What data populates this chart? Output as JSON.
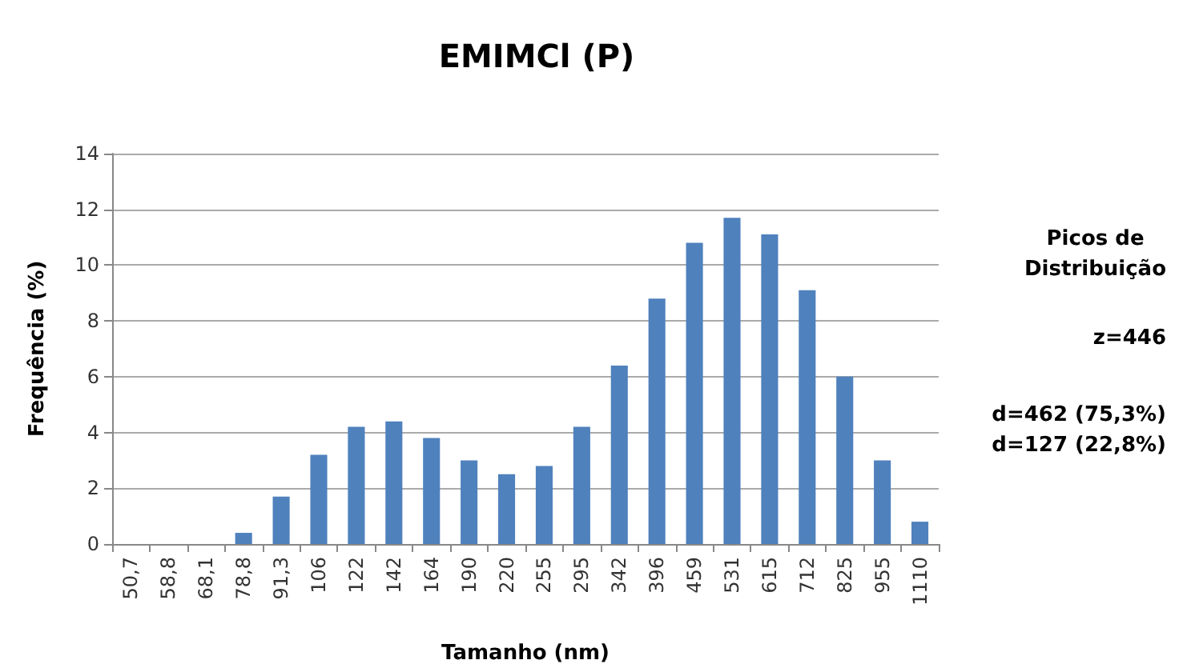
{
  "chart_data": {
    "type": "bar",
    "title": "EMIMCl (P)",
    "xlabel": "Tamanho (nm)",
    "ylabel": "Frequência (%)",
    "categories": [
      "50,7",
      "58,8",
      "68,1",
      "78,8",
      "91,3",
      "106",
      "122",
      "142",
      "164",
      "190",
      "220",
      "255",
      "295",
      "342",
      "396",
      "459",
      "531",
      "615",
      "712",
      "825",
      "955",
      "1110"
    ],
    "values": [
      0,
      0,
      0,
      0.4,
      1.7,
      3.2,
      4.2,
      4.4,
      3.8,
      3.0,
      2.5,
      2.8,
      4.2,
      6.4,
      8.8,
      10.8,
      11.7,
      11.1,
      9.1,
      6.0,
      3.0,
      0.8
    ],
    "color": "#4f81bd",
    "ylim": [
      0,
      14
    ],
    "yticks": [
      0,
      2,
      4,
      6,
      8,
      10,
      12,
      14
    ],
    "grid": "y",
    "annotations": [
      "Picos de\nDistribuição",
      "z=446",
      "d=462 (75,3%)\nd=127 (22,8%)"
    ]
  }
}
